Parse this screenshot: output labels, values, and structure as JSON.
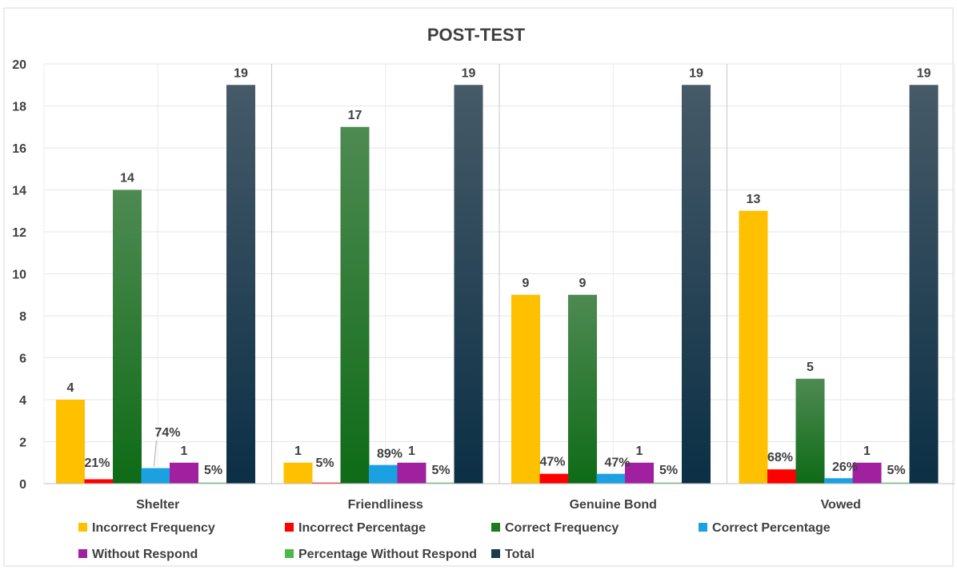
{
  "chart_data": {
    "type": "bar",
    "title": "POST-TEST",
    "xlabel": "",
    "ylabel": "",
    "ylim": [
      0,
      20
    ],
    "yticks": [
      0,
      2,
      4,
      6,
      8,
      10,
      12,
      14,
      16,
      18,
      20
    ],
    "grid": true,
    "legend_position": "bottom",
    "categories": [
      "Shelter",
      "Friendliness",
      "Genuine Bond",
      "Vowed"
    ],
    "series": [
      {
        "name": "Incorrect Frequency",
        "color": "#FFC000",
        "values": [
          4,
          1,
          9,
          13
        ],
        "labels": [
          "4",
          "1",
          "9",
          "13"
        ]
      },
      {
        "name": "Incorrect Percentage",
        "color": "#FF0000",
        "values": [
          0.21,
          0.05,
          0.47,
          0.68
        ],
        "labels": [
          "21%",
          "5%",
          "47%",
          "68%"
        ]
      },
      {
        "name": "Correct Frequency",
        "color": "#1E7A1E",
        "values": [
          14,
          17,
          9,
          5
        ],
        "labels": [
          "14",
          "17",
          "9",
          "5"
        ]
      },
      {
        "name": "Correct Percentage",
        "color": "#1BA1E2",
        "values": [
          0.74,
          0.89,
          0.47,
          0.26
        ],
        "labels": [
          "74%",
          "89%",
          "47%",
          "26%"
        ]
      },
      {
        "name": "Without Respond",
        "color": "#A020A0",
        "values": [
          1,
          1,
          1,
          1
        ],
        "labels": [
          "1",
          "1",
          "1",
          "1"
        ]
      },
      {
        "name": "Percentage Without Respond",
        "color": "#4CB84C",
        "values": [
          0.05,
          0.05,
          0.05,
          0.05
        ],
        "labels": [
          "5%",
          "5%",
          "5%",
          "5%"
        ]
      },
      {
        "name": "Total",
        "color": "#1B3A4B",
        "values": [
          19,
          19,
          19,
          19
        ],
        "labels": [
          "19",
          "19",
          "19",
          "19"
        ]
      }
    ]
  }
}
